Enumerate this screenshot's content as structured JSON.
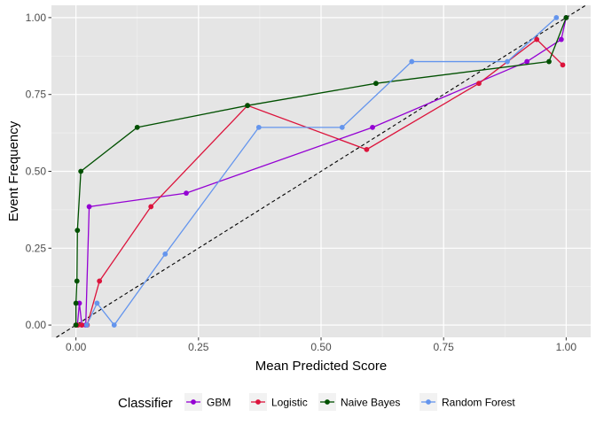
{
  "chart_data": {
    "type": "line",
    "xlabel": "Mean Predicted Score",
    "ylabel": "Event Frequency",
    "xlim": [
      -0.05,
      1.05
    ],
    "ylim": [
      -0.04,
      1.04
    ],
    "x_ticks": [
      "0.00",
      "0.25",
      "0.50",
      "0.75",
      "1.00"
    ],
    "y_ticks": [
      "0.00",
      "0.25",
      "0.50",
      "0.75",
      "1.00"
    ],
    "grid": true,
    "background": "#e5e5e5",
    "reference_line": "y = x, dashed black",
    "legend": {
      "title": "Classifier",
      "placement": "bottom"
    },
    "series": [
      {
        "name": "GBM",
        "color": "#9400d3",
        "points": [
          [
            0.0,
            0.0
          ],
          [
            0.003,
            0.0
          ],
          [
            0.007,
            0.071
          ],
          [
            0.012,
            0.0
          ],
          [
            0.02,
            0.0
          ],
          [
            0.027,
            0.385
          ],
          [
            0.225,
            0.429
          ],
          [
            0.605,
            0.643
          ],
          [
            0.92,
            0.857
          ],
          [
            0.99,
            0.929
          ],
          [
            1.0,
            1.0
          ]
        ]
      },
      {
        "name": "Logistic",
        "color": "#dc143c",
        "points": [
          [
            0.0,
            0.0
          ],
          [
            0.004,
            0.0
          ],
          [
            0.012,
            0.0
          ],
          [
            0.023,
            0.0
          ],
          [
            0.048,
            0.143
          ],
          [
            0.153,
            0.385
          ],
          [
            0.35,
            0.714
          ],
          [
            0.593,
            0.571
          ],
          [
            0.822,
            0.786
          ],
          [
            0.94,
            0.929
          ],
          [
            0.993,
            0.846
          ]
        ]
      },
      {
        "name": "Naive Bayes",
        "color": "#005000",
        "points": [
          [
            0.0,
            0.0
          ],
          [
            0.0,
            0.071
          ],
          [
            0.002,
            0.143
          ],
          [
            0.003,
            0.308
          ],
          [
            0.01,
            0.5
          ],
          [
            0.125,
            0.643
          ],
          [
            0.35,
            0.714
          ],
          [
            0.612,
            0.786
          ],
          [
            0.965,
            0.857
          ],
          [
            1.0,
            1.0
          ]
        ]
      },
      {
        "name": "Random Forest",
        "color": "#6495ed",
        "points": [
          [
            0.022,
            0.0
          ],
          [
            0.043,
            0.071
          ],
          [
            0.078,
            0.0
          ],
          [
            0.182,
            0.231
          ],
          [
            0.373,
            0.643
          ],
          [
            0.543,
            0.643
          ],
          [
            0.685,
            0.857
          ],
          [
            0.88,
            0.857
          ],
          [
            0.98,
            1.0
          ]
        ]
      }
    ]
  }
}
